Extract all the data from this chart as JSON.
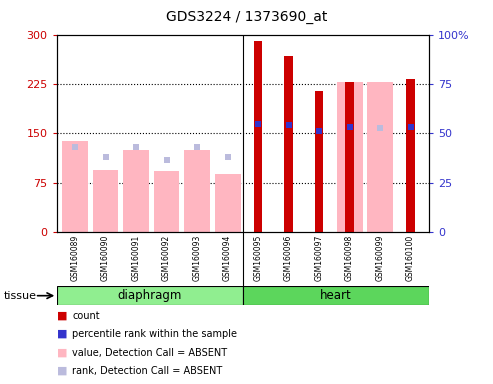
{
  "title": "GDS3224 / 1373690_at",
  "samples": [
    "GSM160089",
    "GSM160090",
    "GSM160091",
    "GSM160092",
    "GSM160093",
    "GSM160094",
    "GSM160095",
    "GSM160096",
    "GSM160097",
    "GSM160098",
    "GSM160099",
    "GSM160100"
  ],
  "red_bar": [
    0,
    0,
    0,
    0,
    0,
    0,
    290,
    268,
    215,
    228,
    0,
    232
  ],
  "blue_square": [
    0,
    0,
    0,
    0,
    0,
    0,
    165,
    163,
    154,
    160,
    0,
    160
  ],
  "pink_bar": [
    138,
    95,
    125,
    93,
    125,
    88,
    0,
    0,
    0,
    228,
    228,
    0
  ],
  "lightblue_square": [
    130,
    115,
    130,
    110,
    130,
    115,
    0,
    0,
    0,
    0,
    158,
    0
  ],
  "ylim_left": [
    0,
    300
  ],
  "ylim_right": [
    0,
    100
  ],
  "yticks_left": [
    0,
    75,
    150,
    225,
    300
  ],
  "yticks_right": [
    0,
    25,
    50,
    75,
    100
  ],
  "diaphragm_indices": [
    0,
    1,
    2,
    3,
    4,
    5
  ],
  "heart_indices": [
    6,
    7,
    8,
    9,
    10,
    11
  ],
  "diaphragm_color_light": "#C8F0C8",
  "diaphragm_color": "#90EE90",
  "heart_color": "#5CD65C",
  "red_color": "#CC0000",
  "blue_color": "#3333CC",
  "pink_color": "#FFB6C1",
  "lightblue_color": "#BBBBDD",
  "left_axis_color": "#CC0000",
  "right_axis_color": "#3333CC",
  "grid_color": "black",
  "xticklabel_bg": "#D3D3D3"
}
